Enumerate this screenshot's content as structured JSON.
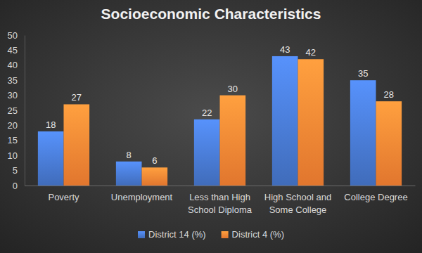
{
  "chart_data": {
    "type": "bar",
    "title": "Socioeconomic Characteristics",
    "categories": [
      "Poverty",
      "Unemployment",
      "Less than High School Diploma",
      "High School and Some College",
      "College Degree"
    ],
    "series": [
      {
        "name": "District 14 (%)",
        "color": "#4472c4",
        "values": [
          18,
          8,
          22,
          43,
          35
        ]
      },
      {
        "name": "District 4 (%)",
        "color": "#ed7d31",
        "values": [
          27,
          6,
          30,
          42,
          28
        ]
      }
    ],
    "ylim": [
      0,
      50
    ],
    "yticks": [
      0,
      5,
      10,
      15,
      20,
      25,
      30,
      35,
      40,
      45,
      50
    ],
    "grid": false,
    "data_labels": true,
    "legend": "bottom"
  }
}
